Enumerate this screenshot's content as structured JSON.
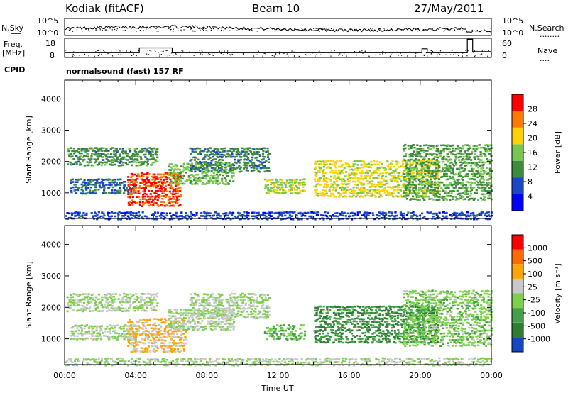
{
  "header": {
    "station": "Kodiak (fitACF)",
    "beam": "Beam 10",
    "date": "27/May/2011",
    "program": "normalsound (fast) 157 RF"
  },
  "left_labels": {
    "nsky": "N.Sky",
    "freq": "Freq.",
    "freq_unit": "[MHz]",
    "cpid": "CPID"
  },
  "right_labels": {
    "nsearch": "N.Search",
    "nsearch_dots": "........",
    "nave": "Nave",
    "nave_dots": "...."
  },
  "noise_axis": {
    "left_ticks": [
      "10^5",
      "10^0"
    ],
    "right_ticks": [
      "10^5",
      "10^0"
    ]
  },
  "freq_axis": {
    "left_ticks": [
      "18",
      "8"
    ],
    "right_ticks": [
      "60",
      "0"
    ]
  },
  "time_axis": {
    "label": "Time UT",
    "ticks": [
      "00:00",
      "04:00",
      "08:00",
      "12:00",
      "16:00",
      "20:00",
      "00:00"
    ]
  },
  "range_axis": {
    "label": "Slant Range [km]",
    "ticks": [
      "4000",
      "3000",
      "2000",
      "1000"
    ]
  },
  "power_colorbar": {
    "label": "Power [dB]",
    "ticks": [
      "28",
      "24",
      "20",
      "16",
      "12",
      "8",
      "4"
    ],
    "colors": [
      "#0000ff",
      "#1a46c8",
      "#3c8c3c",
      "#78c850",
      "#ffd200",
      "#ff7800",
      "#ff0000"
    ]
  },
  "velocity_colorbar": {
    "label": "Velocity [m s⁻¹]",
    "ticks": [
      "1000",
      "500",
      "100",
      "25",
      "-25",
      "-100",
      "-500",
      "-1000"
    ],
    "colors": [
      "#1446c8",
      "#2e7d32",
      "#43a047",
      "#7cd14b",
      "#c8c8c8",
      "#ffa500",
      "#ff6a00",
      "#ff0000"
    ]
  },
  "chart_data": [
    {
      "type": "line",
      "title": "Kodiak (fitACF)",
      "series": [
        {
          "name": "N.Sky"
        },
        {
          "name": "N.Search"
        }
      ],
      "x": {
        "range": [
          "00:00",
          "24:00"
        ],
        "unit": "UT hours"
      },
      "y": {
        "scale": "log",
        "range": [
          1,
          100000
        ]
      }
    },
    {
      "type": "line",
      "series": [
        {
          "name": "Freq. [MHz]",
          "axis": "left",
          "values_by_hour": {
            "0": 10.5,
            "4": 10.5,
            "4.2": 13,
            "6": 13,
            "6.05": 10.5,
            "20": 10.5,
            "20.1": 12.5,
            "20.4": 10.5,
            "22.6": 10.5,
            "22.65": 17.5,
            "22.9": 17.5,
            "22.95": 11,
            "24": 11
          }
        },
        {
          "name": "Nave",
          "axis": "right"
        }
      ],
      "ylim_left": [
        8,
        18
      ],
      "ylim_right": [
        0,
        60
      ]
    },
    {
      "type": "heatmap",
      "parameter": "Power [dB]",
      "xlabel": "Time UT",
      "ylabel": "Slant Range [km]",
      "xlim": [
        "00:00",
        "24:00"
      ],
      "ylim": [
        180,
        4600
      ],
      "zlim": [
        0,
        30
      ],
      "regions": [
        {
          "t": [
            0.1,
            5.2
          ],
          "r": [
            1900,
            2500
          ],
          "level": 11
        },
        {
          "t": [
            0.3,
            4.0
          ],
          "r": [
            1000,
            1500
          ],
          "level": 8
        },
        {
          "t": [
            3.5,
            6.5
          ],
          "r": [
            600,
            1700
          ],
          "level": 26
        },
        {
          "t": [
            5.8,
            9.5
          ],
          "r": [
            1300,
            2000
          ],
          "level": 14
        },
        {
          "t": [
            7.0,
            11.5
          ],
          "r": [
            1700,
            2500
          ],
          "level": 10
        },
        {
          "t": [
            11.2,
            13.5
          ],
          "r": [
            1000,
            1500
          ],
          "level": 16
        },
        {
          "t": [
            14.0,
            21.0
          ],
          "r": [
            900,
            2100
          ],
          "level": 18
        },
        {
          "t": [
            19.0,
            24.0
          ],
          "r": [
            800,
            2600
          ],
          "level": 12
        },
        {
          "t": [
            0.0,
            24.0
          ],
          "r": [
            180,
            450
          ],
          "level": 6
        }
      ]
    },
    {
      "type": "heatmap",
      "parameter": "Velocity [m s-1]",
      "xlabel": "Time UT",
      "ylabel": "Slant Range [km]",
      "xlim": [
        "00:00",
        "24:00"
      ],
      "ylim": [
        180,
        4600
      ],
      "zlim": [
        -1000,
        1000
      ],
      "regions": [
        {
          "t": [
            0.1,
            5.2
          ],
          "r": [
            1900,
            2500
          ],
          "level": 0
        },
        {
          "t": [
            0.3,
            4.0
          ],
          "r": [
            1000,
            1500
          ],
          "level": 0
        },
        {
          "t": [
            3.5,
            6.8
          ],
          "r": [
            600,
            1700
          ],
          "level": 300
        },
        {
          "t": [
            5.8,
            9.5
          ],
          "r": [
            1300,
            2000
          ],
          "level": 0
        },
        {
          "t": [
            7.0,
            11.5
          ],
          "r": [
            1700,
            2500
          ],
          "level": 0
        },
        {
          "t": [
            11.2,
            13.5
          ],
          "r": [
            1000,
            1500
          ],
          "level": -300
        },
        {
          "t": [
            14.0,
            21.0
          ],
          "r": [
            900,
            2100
          ],
          "level": -500
        },
        {
          "t": [
            19.0,
            24.0
          ],
          "r": [
            800,
            2600
          ],
          "level": -150
        },
        {
          "t": [
            0.0,
            24.0
          ],
          "r": [
            180,
            450
          ],
          "level": 0
        }
      ]
    }
  ]
}
